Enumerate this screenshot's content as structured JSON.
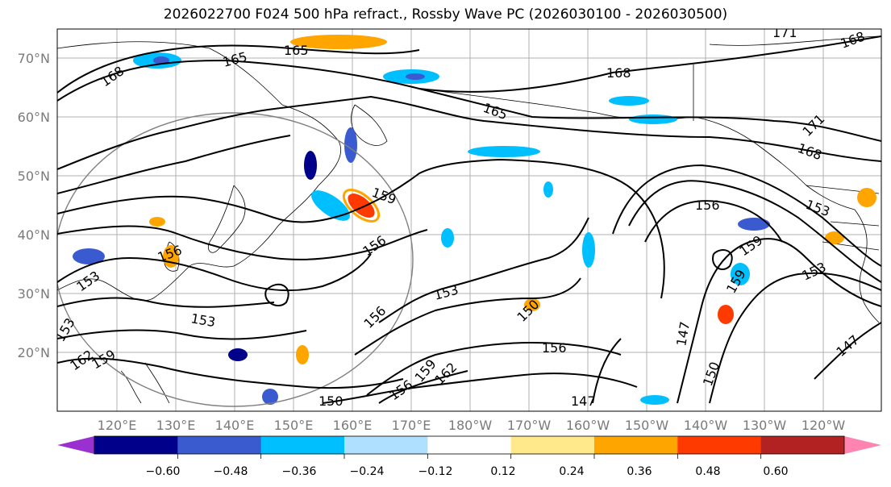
{
  "title": "2026022700 F024 500 hPa refract., Rossby Wave PC (2026030100 - 2026030500)",
  "lat_ticks": [
    "70°N",
    "60°N",
    "50°N",
    "40°N",
    "30°N",
    "20°N"
  ],
  "lon_ticks": [
    "120°E",
    "130°E",
    "140°E",
    "150°E",
    "160°E",
    "170°E",
    "180°W",
    "170°W",
    "160°W",
    "150°W",
    "140°W",
    "130°W",
    "120°W"
  ],
  "contour_labels": [
    "168",
    "165",
    "165",
    "171",
    "168",
    "168",
    "165",
    "171",
    "168",
    "159",
    "156",
    "156",
    "153",
    "156",
    "153",
    "153",
    "153",
    "156",
    "150",
    "156",
    "147",
    "150",
    "159",
    "162",
    "156",
    "159",
    "150",
    "147",
    "159",
    "153",
    "150",
    "147",
    "153",
    "162",
    "159"
  ],
  "colorbar": {
    "ticks": [
      "−0.60",
      "−0.48",
      "−0.36",
      "−0.24",
      "−0.12",
      "0.12",
      "0.24",
      "0.36",
      "0.48",
      "0.60"
    ],
    "colors": [
      "#9b30d0",
      "#00008b",
      "#3a5bd0",
      "#00bfff",
      "#b0e0ff",
      "#ffffff",
      "#ffe98a",
      "#ffa500",
      "#ff3a00",
      "#b22222",
      "#ff85b0"
    ]
  }
}
